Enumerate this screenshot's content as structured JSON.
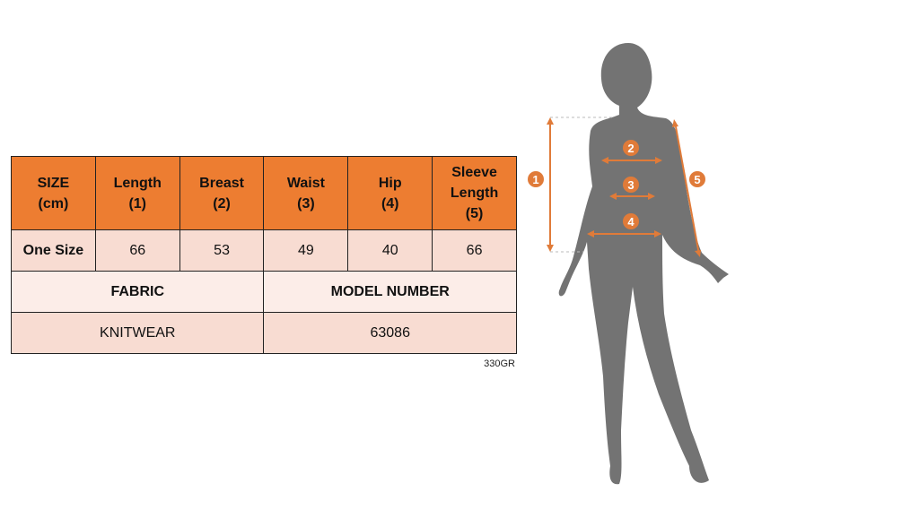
{
  "table": {
    "header": [
      "SIZE\n(cm)",
      "Length\n(1)",
      "Breast\n(2)",
      "Waist\n(3)",
      "Hip\n(4)",
      "Sleeve\nLength\n(5)"
    ],
    "row": {
      "label": "One Size",
      "values": [
        "66",
        "53",
        "49",
        "40",
        "66"
      ]
    },
    "fabric_label": "FABRIC",
    "model_label": "MODEL NUMBER",
    "fabric_value": "KNITWEAR",
    "model_value": "63086"
  },
  "code": "330GR",
  "diagram": {
    "markers": [
      "1",
      "2",
      "3",
      "4",
      "5"
    ]
  },
  "colors": {
    "header": "#ED7D31",
    "row": "#F8DCD2",
    "silhouette": "#737373",
    "arrow": "#E07B39"
  }
}
